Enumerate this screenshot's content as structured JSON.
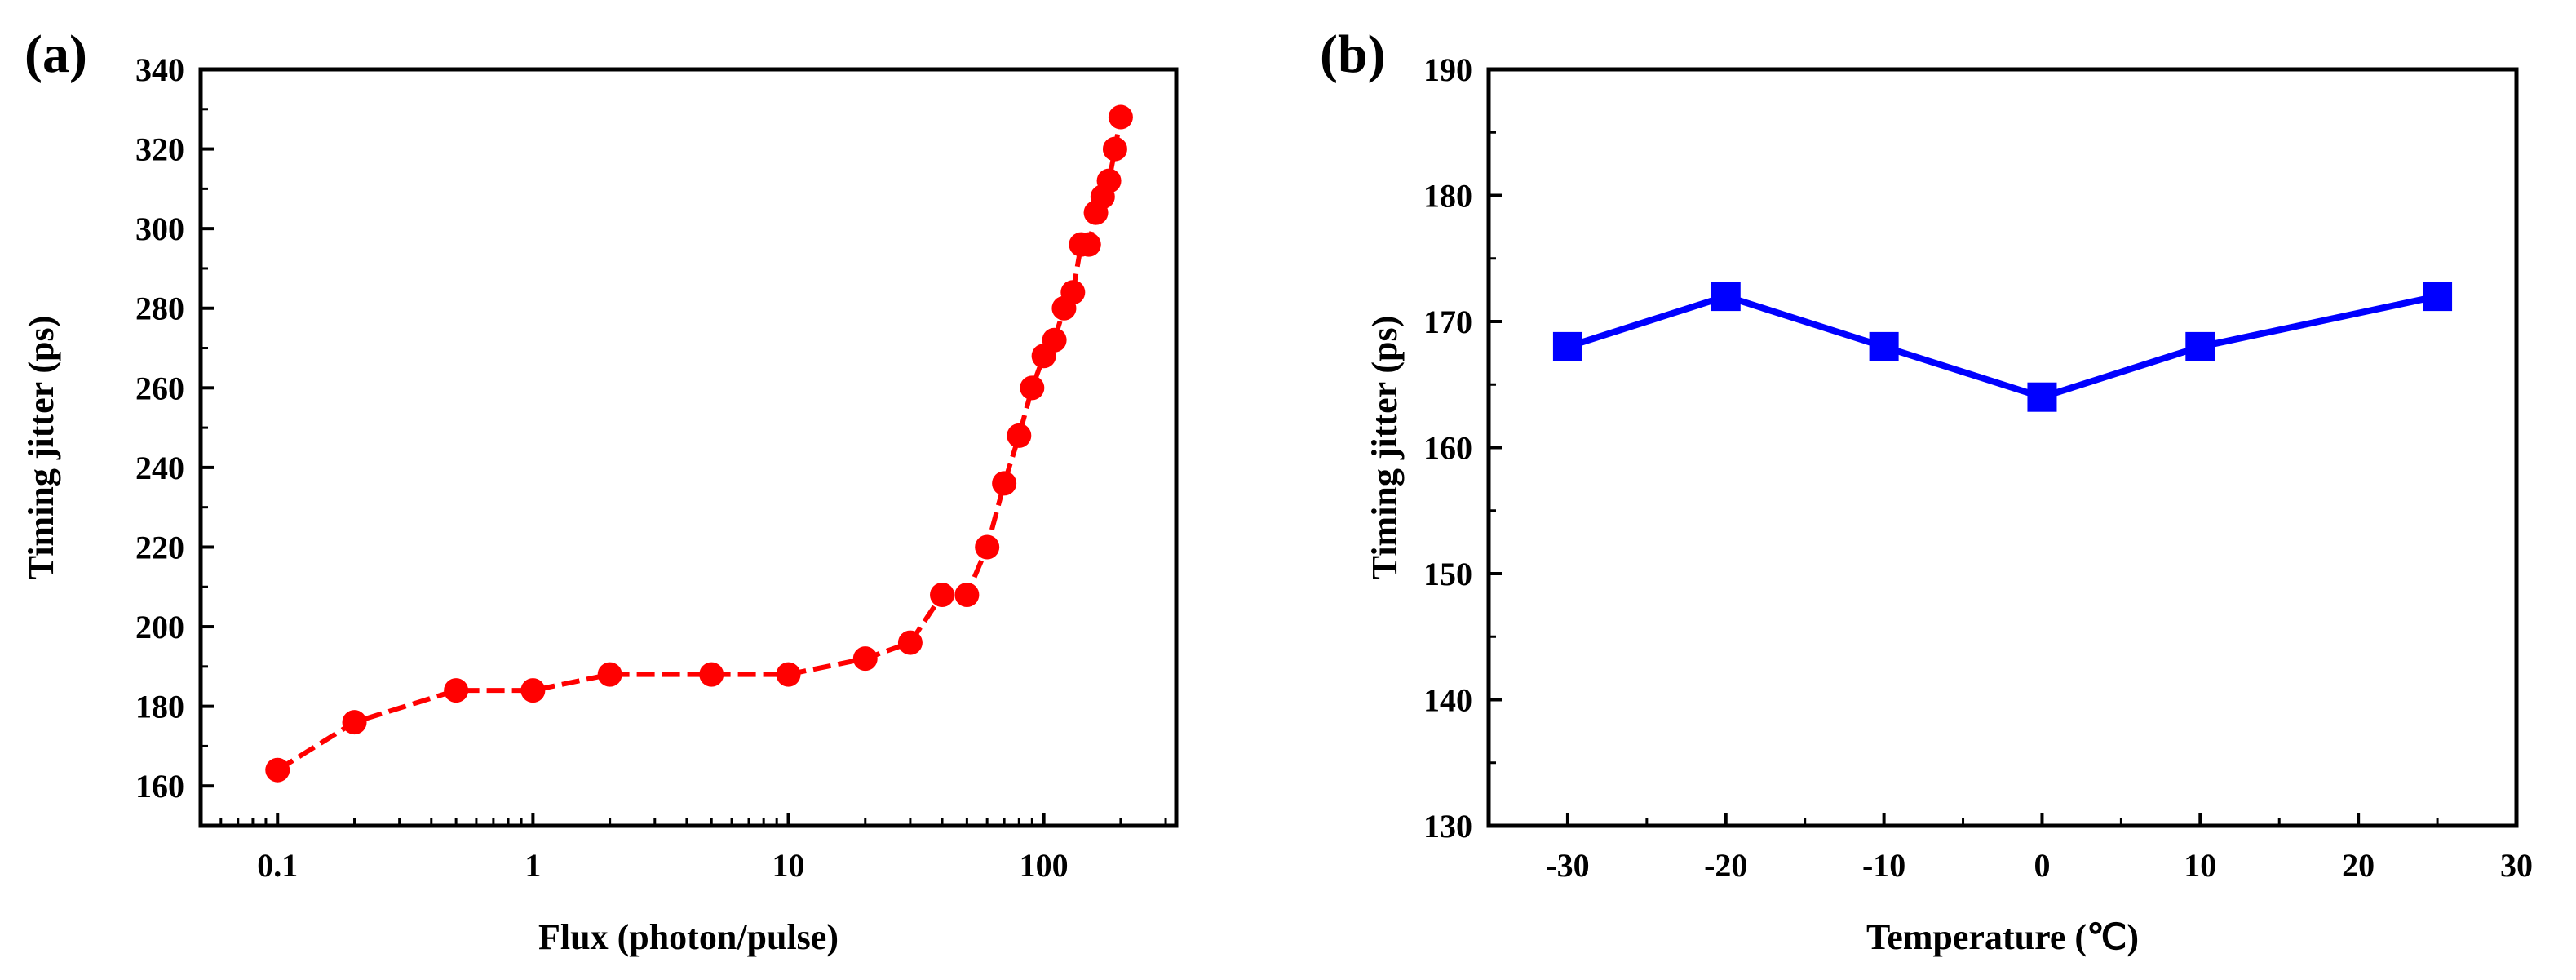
{
  "chart_data": [
    {
      "panel_label": "(a)",
      "type": "line",
      "marker": "circle",
      "color": "#ff0000",
      "line_style": "dashed",
      "xscale": "log",
      "xlabel": "Flux (photon/pulse)",
      "ylabel": "Timing jitter (ps)",
      "xlim": [
        0.05,
        330
      ],
      "ylim": [
        150,
        340
      ],
      "xticks": [
        0.1,
        1,
        10,
        100
      ],
      "xtick_labels": [
        "0.1",
        "1",
        "10",
        "100"
      ],
      "yticks": [
        160,
        180,
        200,
        220,
        240,
        260,
        280,
        300,
        320,
        340
      ],
      "ytick_labels": [
        "160",
        "180",
        "200",
        "220",
        "240",
        "260",
        "280",
        "300",
        "320",
        "340"
      ],
      "x": [
        0.1,
        0.2,
        0.5,
        1,
        2,
        5,
        10,
        20,
        30,
        40,
        50,
        60,
        70,
        80,
        90,
        100,
        110,
        120,
        130,
        140,
        150,
        160,
        170,
        180,
        190,
        200
      ],
      "y": [
        164,
        176,
        184,
        184,
        188,
        188,
        188,
        192,
        196,
        208,
        208,
        220,
        236,
        248,
        260,
        268,
        272,
        280,
        284,
        296,
        296,
        304,
        308,
        312,
        320,
        328
      ]
    },
    {
      "panel_label": "(b)",
      "type": "line",
      "marker": "square",
      "color": "#0000ff",
      "line_style": "solid",
      "xscale": "linear",
      "xlabel": "Temperature (℃)",
      "ylabel": "Timing jitter (ps)",
      "xlim": [
        -35,
        30
      ],
      "ylim": [
        130,
        190
      ],
      "xticks": [
        -30,
        -20,
        -10,
        0,
        10,
        20,
        30
      ],
      "xtick_labels": [
        "-30",
        "-20",
        "-10",
        "0",
        "10",
        "20",
        "30"
      ],
      "yticks": [
        130,
        140,
        150,
        160,
        170,
        180,
        190
      ],
      "ytick_labels": [
        "130",
        "140",
        "150",
        "160",
        "170",
        "180",
        "190"
      ],
      "x": [
        -30,
        -20,
        -10,
        0,
        10,
        25
      ],
      "y": [
        168,
        172,
        168,
        164,
        168,
        172
      ]
    }
  ]
}
